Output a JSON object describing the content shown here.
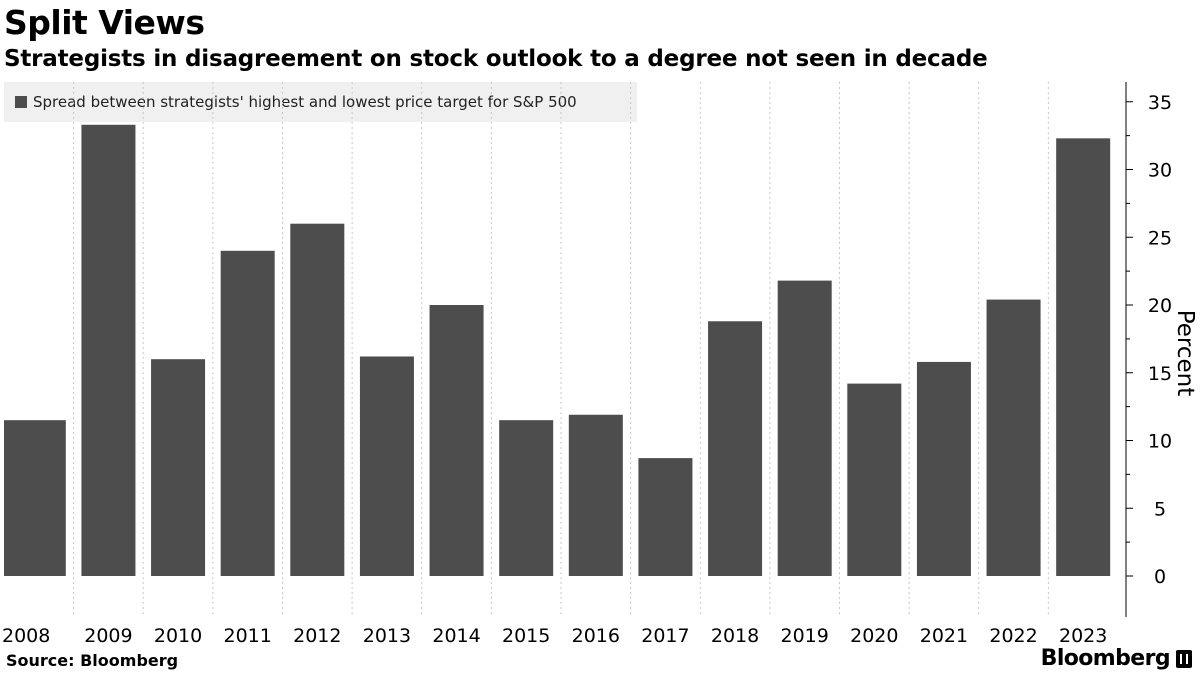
{
  "header": {
    "title": "Split Views",
    "subtitle": "Strategists in disagreement on stock outlook to a degree not seen in decade"
  },
  "legend": {
    "label": "Spread between strategists' highest and lowest price target for S&P 500",
    "color": "#4d4d4d"
  },
  "footer": {
    "source": "Source: Bloomberg",
    "brand": "Bloomberg"
  },
  "chart_data": {
    "type": "bar",
    "title": "Split Views",
    "subtitle": "Strategists in disagreement on stock outlook to a degree not seen in decade",
    "categories": [
      "2008",
      "2009",
      "2010",
      "2011",
      "2012",
      "2013",
      "2014",
      "2015",
      "2016",
      "2017",
      "2018",
      "2019",
      "2020",
      "2021",
      "2022",
      "2023"
    ],
    "series": [
      {
        "name": "Spread between strategists' highest and lowest price target for S&P 500",
        "values": [
          11.5,
          33.3,
          16.0,
          24.0,
          26.0,
          16.2,
          20.0,
          11.5,
          11.9,
          8.7,
          18.8,
          21.8,
          14.2,
          15.8,
          20.4,
          32.3
        ],
        "color": "#4d4d4d"
      }
    ],
    "xlabel": "",
    "ylabel": "Percent",
    "ylim": [
      -3,
      35.5
    ],
    "yticks": [
      0,
      5,
      10,
      15,
      20,
      25,
      30,
      35
    ],
    "y_axis_position": "right",
    "grid": "vertical dotted",
    "legend_position": "top-left"
  }
}
